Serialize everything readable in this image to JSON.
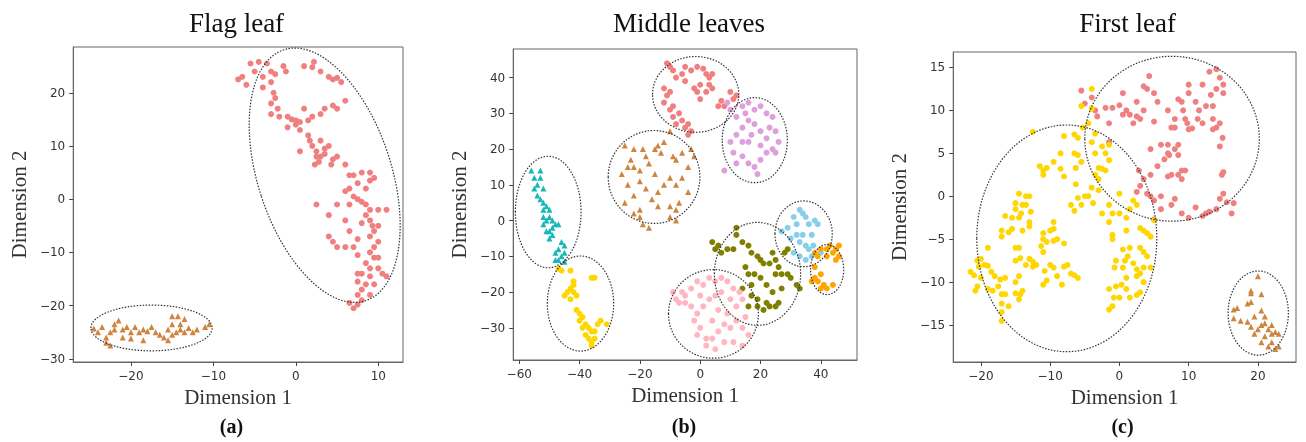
{
  "chart_data": [
    {
      "type": "scatter",
      "title": "Flag leaf",
      "xlabel": "Dimension 1",
      "ylabel": "Dimension 2",
      "annotations": [
        "(a)"
      ],
      "xlim": [
        -27,
        13
      ],
      "ylim": [
        -30.6,
        28.6
      ],
      "xticks": [
        -20,
        -10,
        0,
        10
      ],
      "yticks": [
        -30,
        -20,
        -10,
        0,
        10,
        20
      ],
      "series": [
        {
          "color": "#f08080",
          "marker": "circle",
          "x": [
            -7,
            -6.5,
            -6,
            -5.5,
            -5,
            -4.5,
            -4,
            -4,
            -3.5,
            -3,
            -3,
            -2.7,
            -2.5,
            -3,
            -2.2,
            -3,
            -2,
            -1,
            -0.5,
            0,
            -1.5,
            -1.2,
            -2.5,
            1,
            2,
            2.2,
            3,
            4,
            4.5,
            5,
            5.5,
            6,
            5,
            4.5,
            3.5,
            3,
            2,
            1.5,
            0.5,
            1,
            0.5,
            1.5,
            1.7,
            2,
            2.5,
            2.5,
            3,
            3.5,
            3.5,
            2.8,
            2.3,
            4.3,
            4.5,
            4,
            5,
            6,
            6.5,
            7,
            7.5,
            8,
            9,
            9,
            9.5,
            8.5,
            6,
            6.5,
            7,
            5,
            6.5,
            7.5,
            8,
            8.5,
            9,
            10,
            8.5,
            9,
            9.3,
            9.5,
            9,
            10,
            10,
            9.5,
            9,
            9.5,
            10,
            8.5,
            9,
            10,
            8,
            9,
            10.5,
            11,
            7.5,
            8.5,
            9.5,
            8,
            7.5,
            8,
            9,
            6.5,
            7,
            7.5,
            4,
            4.5,
            5,
            6,
            7,
            7.5,
            7.5,
            7.5,
            2.5,
            4,
            6,
            8,
            6.5,
            11,
            0,
            -1,
            0.5,
            3
          ],
          "values": [
            22.5,
            23,
            21.5,
            25.5,
            24,
            25.8,
            23,
            21,
            25.5,
            24,
            22,
            20,
            19,
            18,
            17,
            16,
            15.5,
            15.5,
            15,
            14.8,
            25,
            24,
            23.5,
            25,
            24.8,
            25.8,
            24,
            23,
            22.5,
            22.8,
            22,
            18.5,
            17,
            17.6,
            17,
            16,
            15.5,
            14.8,
            13,
            17,
            14.5,
            12,
            11,
            10,
            9,
            8,
            8,
            8.5,
            9.5,
            7,
            6.5,
            6.5,
            7.5,
            10,
            8,
            6.5,
            4.5,
            4.5,
            3,
            5,
            3.5,
            5,
            4,
            2,
            1.5,
            2,
            0.5,
            -1,
            -1,
            0,
            -0.5,
            -1,
            -2,
            -2,
            -3,
            -4,
            -5,
            -6,
            -7,
            -5,
            -8,
            -9,
            -10,
            -11,
            -11,
            -12,
            -13,
            -13,
            -14,
            -14.5,
            -14,
            -14.5,
            -15.5,
            -16,
            -16,
            -17,
            -18,
            -19,
            -18,
            -19.5,
            -20.5,
            -19.8,
            -7,
            -8,
            -9,
            -9,
            -9,
            -7.5,
            -10.5,
            -14,
            -1,
            -3,
            -4,
            -4.5,
            -6,
            -2,
            14,
            13.5,
            9,
            11
          ]
        },
        {
          "color": "#cd853f",
          "marker": "triangle",
          "x": [
            -24.5,
            -24,
            -23.5,
            -23,
            -23,
            -22.5,
            -22.5,
            -22,
            -21.5,
            -22,
            -21,
            -21,
            -20.5,
            -20,
            -20,
            -19.5,
            -19,
            -18.5,
            -18.5,
            -18,
            -17.5,
            -17,
            -16.5,
            -16,
            -15.5,
            -15,
            -15,
            -14.5,
            -14.3,
            -14,
            -14,
            -13.5,
            -13,
            -12.5,
            -12,
            -11,
            -10.5,
            -15,
            -15.5,
            -13.5
          ],
          "values": [
            -24.3,
            -25,
            -24,
            -26,
            -27,
            -27.5,
            -25,
            -24.5,
            -22.8,
            -23.5,
            -24.5,
            -26,
            -24,
            -25,
            -26.2,
            -24,
            -25,
            -24.5,
            -26.5,
            -24.8,
            -24,
            -25,
            -25.5,
            -26,
            -24.5,
            -23.5,
            -22,
            -25,
            -22,
            -24.5,
            -23.5,
            -25,
            -24.2,
            -25,
            -24.5,
            -24,
            -23.5,
            -25.5,
            -26.5,
            -22.5
          ]
        }
      ]
    },
    {
      "type": "scatter",
      "title": "Middle leaves",
      "xlabel": "Dimension 1",
      "ylabel": "Dimension 2",
      "annotations": [
        "(b)"
      ],
      "xlim": [
        -62,
        52
      ],
      "ylim": [
        -39,
        48
      ],
      "xticks": [
        -60,
        -40,
        -20,
        0,
        20,
        40
      ],
      "yticks": [
        -30,
        -20,
        -10,
        0,
        10,
        20,
        30,
        40
      ],
      "series": [
        {
          "color": "#f08080",
          "marker": "circle",
          "x": [
            -11,
            -10,
            -9,
            -8,
            -5,
            -3,
            -1,
            1,
            2,
            3,
            3,
            4,
            0,
            -1,
            -2,
            2,
            0,
            -5,
            -10,
            -11,
            -12,
            -10,
            -9,
            -8,
            -6,
            -5,
            -4,
            -3,
            -4,
            -9,
            -7,
            6,
            8,
            10,
            11,
            12,
            7,
            -12,
            4,
            -6
          ],
          "values": [
            44,
            43,
            42,
            40,
            43,
            42,
            43,
            42.5,
            41,
            40,
            38,
            37,
            38,
            36,
            37,
            36,
            34,
            39,
            36,
            35,
            33,
            31,
            29,
            27,
            28,
            26,
            24,
            25,
            27,
            32,
            30,
            32,
            32,
            36,
            34,
            35,
            33.5,
            37,
            41,
            41
          ]
        },
        {
          "color": "#dda0dd",
          "marker": "circle",
          "x": [
            9,
            10,
            12,
            14,
            16,
            18,
            20,
            22,
            24,
            25,
            26,
            25,
            24,
            22,
            20,
            18,
            16,
            14,
            12,
            10,
            11,
            12,
            14,
            16,
            18,
            19,
            20,
            22,
            20,
            16,
            14,
            8,
            17,
            23,
            15
          ],
          "values": [
            33,
            31,
            29,
            32,
            33,
            31,
            32,
            30,
            29,
            25,
            22,
            19,
            20,
            23,
            25,
            27,
            28,
            26,
            24,
            22,
            19,
            16,
            18,
            16,
            15,
            13,
            17,
            19,
            21,
            22,
            22,
            14,
            24,
            26,
            30
          ]
        },
        {
          "color": "#cd853f",
          "marker": "triangle",
          "x": [
            -25,
            -23,
            -24,
            -26,
            -22,
            -20,
            -22,
            -18,
            -17,
            -15,
            -13,
            -14,
            -12,
            -10,
            -9,
            -8,
            -6,
            -3,
            -2,
            -4,
            -6,
            -4,
            -8,
            -10,
            -12,
            -14,
            -16,
            -18,
            -20,
            -22,
            -24,
            -25,
            -22,
            -20,
            -19,
            -17,
            -14,
            -10,
            -8,
            -8,
            -10,
            -7,
            -15,
            -19,
            -20
          ],
          "values": [
            21,
            17,
            15,
            13,
            15,
            14,
            20,
            18,
            16,
            20,
            19,
            21,
            22,
            25,
            18,
            17,
            19,
            20,
            18,
            15,
            12,
            8,
            10,
            12,
            10,
            8,
            6,
            9,
            11,
            7,
            10,
            5,
            2,
            1,
            -1,
            -2,
            4,
            4,
            3,
            0,
            1,
            5,
            13,
            20,
            3
          ]
        },
        {
          "color": "#17b8b8",
          "marker": "triangle",
          "x": [
            -56,
            -55,
            -54,
            -53,
            -52,
            -54,
            -53,
            -52,
            -51,
            -52,
            -50,
            -50,
            -51,
            -52,
            -51,
            -50,
            -49,
            -48,
            -47,
            -49,
            -46,
            -45,
            -45,
            -46,
            -47,
            -48,
            -48,
            -45,
            -47,
            -53,
            -55,
            -50,
            -49,
            -52
          ],
          "values": [
            14,
            12,
            10,
            14,
            9,
            7,
            6,
            5,
            4,
            3,
            3,
            1,
            0,
            -1,
            -3,
            -5,
            -2,
            -1,
            -1,
            -4,
            -6,
            -7,
            -9,
            -10,
            -8,
            -9,
            -11,
            -11.5,
            -11,
            12,
            9,
            -3,
            0,
            1
          ]
        },
        {
          "color": "#ffd700",
          "marker": "circle",
          "x": [
            -47,
            -46,
            -43,
            -42,
            -43,
            -44,
            -45,
            -43,
            -42,
            -41,
            -36,
            -35,
            -41,
            -40,
            -40,
            -39,
            -38,
            -37,
            -36,
            -35,
            -37,
            -36,
            -36,
            -35,
            -34,
            -33,
            -31,
            -38,
            -39,
            -42
          ],
          "values": [
            -13.5,
            -14,
            -14,
            -17,
            -19,
            -20,
            -21,
            -22,
            -20,
            -21,
            -16,
            -16,
            -25,
            -26,
            -28,
            -27,
            -29,
            -30,
            -31,
            -31,
            -33,
            -34,
            -35,
            -33,
            -29,
            -28,
            -29,
            -32,
            -30,
            -18
          ]
        },
        {
          "color": "#808000",
          "marker": "circle",
          "x": [
            4,
            5,
            7,
            9,
            11,
            12,
            12,
            14,
            16,
            17,
            19,
            21,
            23,
            25,
            26,
            25,
            27,
            29,
            30,
            29,
            28,
            24,
            20,
            15,
            16,
            18,
            20,
            17,
            14,
            17,
            16,
            19,
            21,
            23,
            25,
            26,
            22,
            24,
            27,
            22,
            32,
            33,
            6,
            19
          ],
          "values": [
            -6,
            -8,
            -9,
            -8,
            -8,
            -2,
            -4,
            -6,
            -7,
            -9,
            -10,
            -12,
            -12,
            -11,
            -13,
            -15,
            -15,
            -15,
            -16,
            -8,
            -9,
            -9,
            -11,
            -13,
            -15,
            -15,
            -16,
            -18,
            -19,
            -21,
            -24,
            -24,
            -25,
            -24,
            -24,
            -23,
            -18,
            -20,
            -19,
            -23,
            -18,
            -19,
            -7,
            -22
          ]
        },
        {
          "color": "#87ceeb",
          "marker": "circle",
          "x": [
            27,
            29,
            31,
            32,
            33,
            34,
            35,
            36,
            38,
            39,
            34,
            33,
            32,
            30,
            35,
            36,
            37,
            37.5,
            40,
            31,
            37,
            33,
            35
          ],
          "values": [
            -3,
            -2,
            1,
            -1,
            3,
            2,
            1,
            -1,
            0,
            -1,
            -4,
            -6,
            -4,
            -5,
            -7,
            -8,
            -10,
            -7,
            -9,
            -9,
            -4,
            -10,
            -11
          ]
        },
        {
          "color": "#ffa500",
          "marker": "circle",
          "x": [
            38,
            39,
            40,
            42,
            43,
            44,
            45,
            46,
            46,
            45,
            42,
            38,
            37,
            38,
            39,
            40,
            41,
            42,
            40,
            44
          ],
          "values": [
            -9,
            -10,
            -8,
            -8,
            -7,
            -9,
            -8,
            -7,
            -10,
            -11,
            -10,
            -13,
            -17,
            -16,
            -17,
            -19,
            -18,
            -19,
            -15,
            -18
          ]
        },
        {
          "color": "#ffb6c1",
          "marker": "circle",
          "x": [
            -9,
            -8,
            -6,
            -5,
            -3,
            -1,
            1,
            3,
            5,
            7,
            9,
            11,
            13,
            14,
            12,
            10,
            7,
            5,
            3,
            1,
            -1,
            -3,
            -5,
            -7,
            -2,
            0,
            2,
            -1,
            2,
            4,
            6,
            8,
            10,
            12,
            14,
            16,
            14,
            11,
            8,
            5,
            15,
            9,
            6,
            4,
            0
          ],
          "values": [
            -20,
            -22,
            -20,
            -21,
            -19,
            -17,
            -18,
            -16,
            -17,
            -16,
            -17,
            -19,
            -20,
            -22,
            -24,
            -22,
            -20,
            -21,
            -22,
            -24,
            -26,
            -24,
            -23,
            -23,
            -28,
            -30,
            -33,
            -32,
            -35,
            -33,
            -31,
            -29,
            -30,
            -28,
            -30,
            -32,
            -35,
            -34,
            -34,
            -36,
            -27,
            -26,
            -25,
            -28,
            -21
          ]
        }
      ]
    },
    {
      "type": "scatter",
      "title": "First leaf",
      "xlabel": "Dimension 1",
      "ylabel": "Dimension 2",
      "annotations": [
        "(c)"
      ],
      "xlim": [
        -24,
        25.5
      ],
      "ylim": [
        -19.3,
        16.8
      ],
      "xticks": [
        -20,
        -10,
        0,
        10,
        20
      ],
      "yticks": [
        -15,
        -10,
        -5,
        0,
        5,
        10,
        15
      ],
      "series": [
        {
          "color": "#f08080",
          "marker": "circle",
          "x": [
            -5.5,
            -5,
            -4,
            -3.5,
            -3.2,
            -2,
            -1,
            0,
            0.5,
            1,
            1.5,
            2,
            2.5,
            2.5,
            3,
            3.5,
            4,
            4.3,
            5,
            5.5,
            3.5,
            -1.5,
            -1.5,
            0.5,
            5,
            7,
            7.5,
            8,
            8.5,
            9,
            9.5,
            9.2,
            10,
            10,
            10,
            9.8,
            8,
            7,
            6.5,
            7.2,
            6,
            7,
            8,
            9,
            7.5,
            5.5,
            4.5,
            3.5,
            3,
            2.5,
            4,
            4.5,
            5,
            6,
            6,
            5,
            7.5,
            8,
            10,
            9,
            11,
            12,
            12.5,
            13,
            14,
            14.5,
            15,
            15.5,
            16.5,
            16.2,
            14.8,
            15,
            14.5,
            14.9,
            14.5,
            14,
            13.5,
            13.5,
            13.5,
            12.5,
            11,
            11.5,
            12,
            13,
            14,
            14.5,
            15,
            15,
            14,
            13.2,
            11.3,
            12,
            10.5,
            8.5,
            8.5,
            9.5,
            9,
            7,
            8.5,
            2.8,
            4.5
          ],
          "values": [
            12.3,
            10.8,
            11.5,
            10,
            9.3,
            10.3,
            10.3,
            10.6,
            12,
            10,
            9.5,
            8.5,
            11,
            9.3,
            9,
            12.8,
            12.5,
            14,
            12,
            11,
            10,
            8.5,
            6.3,
            9.5,
            8.7,
            10,
            8,
            9,
            11.3,
            11,
            9,
            10,
            12,
            13,
            7.8,
            8.5,
            8,
            5,
            4.3,
            4.8,
            6,
            6,
            5.5,
            3,
            2.5,
            3.5,
            2.5,
            2,
            1.2,
            0.5,
            0.3,
            0,
            -0.5,
            0,
            -1.5,
            -2.7,
            -1,
            -0.3,
            -2.5,
            -2,
            -1.3,
            -2.3,
            -2,
            -1.8,
            -1.5,
            -0.3,
            0.3,
            -0.7,
            -0.8,
            -2,
            2.5,
            2.8,
            5.8,
            6.8,
            8.5,
            8,
            7.8,
            9,
            10.5,
            10.5,
            11,
            10,
            13,
            14.5,
            14.8,
            13.8,
            13,
            12,
            12.5,
            11.8,
            9,
            8.5,
            7.9,
            6,
            4.8,
            3,
            2,
            2.3,
            2.5,
            3,
            5.5
          ]
        },
        {
          "color": "#ffd700",
          "marker": "circle",
          "x": [
            -21.5,
            -21,
            -20.5,
            -20,
            -20.3,
            -19.5,
            -19,
            -19,
            -18.5,
            -18,
            -20,
            -20.5,
            -20.8,
            -19,
            -18.3,
            -17.5,
            -17,
            -16.5,
            -17,
            -17,
            -16,
            -16.5,
            -17.2,
            -17,
            -17,
            -17,
            -16.5,
            -16,
            -15.5,
            -15.5,
            -15,
            -15,
            -14.5,
            -14,
            -14.2,
            -14.5,
            -13.5,
            -13.5,
            -13,
            -12.8,
            -13,
            -13,
            -14,
            -15,
            -15,
            -14.5,
            -14.3,
            -13.5,
            -13,
            -12.5,
            -12,
            -12.5,
            -14.5,
            -15,
            -15,
            -14.3,
            -14.5,
            -14,
            -11,
            -11,
            -11.3,
            -10.5,
            -10,
            -9.5,
            -9.5,
            -9.5,
            -9,
            -8,
            -11,
            -10.8,
            -10,
            -9.5,
            -9,
            -8,
            -7.5,
            -8.3,
            -7,
            -6.5,
            -6,
            -11,
            -10.5,
            -12.5,
            -11.5,
            -11,
            -11,
            -10.5,
            -9.5,
            -8.5,
            -8,
            -8.5,
            -8,
            -6.5,
            -6.5,
            -6,
            -6.3,
            -6,
            -5.5,
            -6.3,
            -5.5,
            -5.3,
            -4.5,
            -4,
            -4,
            -3.5,
            -4,
            -3.5,
            -3,
            -3.5,
            -3,
            -2.5,
            -2,
            -2,
            -1.5,
            -1.5,
            -2.5,
            -3,
            -4,
            -4.5,
            -5,
            -5.5,
            -6.5,
            -6,
            -7,
            -3.8,
            -2.5,
            -1.5,
            -1,
            0,
            0,
            -1.5,
            1,
            1.5,
            2,
            2.5,
            3,
            3.5,
            4,
            4.5,
            5,
            1,
            -1,
            -1,
            0.5,
            1.2,
            0.8,
            -0.5,
            -0.7,
            0.5,
            1.5,
            2,
            3,
            3.5,
            4,
            3.5,
            4.5,
            1,
            2.5,
            2.5,
            3,
            0.3,
            1,
            -0.5,
            -1.5,
            -0.8,
            0,
            -1,
            -1.5,
            1.5,
            2.5,
            3,
            3.5
          ],
          "values": [
            -8.8,
            -9.2,
            -7.5,
            -7.3,
            -8.2,
            -8,
            -8.1,
            -6,
            -8.8,
            -9.3,
            -9.5,
            -10.5,
            -11,
            -10.8,
            -11,
            -10.5,
            -11.4,
            -11.4,
            -12.5,
            -13.5,
            -12.8,
            -9.5,
            -9.7,
            -14.5,
            -4.7,
            -4,
            -2.3,
            -4.2,
            -2.5,
            -3.8,
            -0.8,
            -1.5,
            0.3,
            -1,
            -2,
            -2.5,
            -1,
            0,
            0,
            -1.8,
            -3,
            -3.5,
            -4,
            -6,
            -7.5,
            -6,
            -7.2,
            -8,
            -7.3,
            -8.2,
            -8,
            -7.6,
            -9.3,
            -10,
            -11.3,
            -11.4,
            -12,
            -11,
            -4.3,
            -5,
            -5.8,
            -5.3,
            -4,
            -3,
            -3.8,
            -5.2,
            -5,
            -5.5,
            -6.5,
            -8.7,
            -8,
            -8.3,
            -9.3,
            -8.2,
            -8,
            -10.3,
            -9,
            -9.2,
            -9.5,
            -10.3,
            -9.8,
            7.5,
            3.5,
            3,
            2.5,
            3.3,
            4,
            5,
            7,
            3.2,
            2.3,
            7.2,
            5,
            4.8,
            3.3,
            6.8,
            4,
            1.4,
            10.5,
            8,
            8.5,
            12.5,
            10.2,
            7.3,
            6.3,
            5,
            3.3,
            2.5,
            2,
            3.2,
            3,
            5,
            6,
            4.2,
            5.8,
            0.7,
            1,
            0,
            0,
            -1,
            -1.7,
            -0.2,
            -1,
            -0.8,
            -2,
            -1,
            -2,
            -2,
            0.3,
            -3,
            -2.5,
            -1.5,
            -0.5,
            -1,
            -3.7,
            -4,
            -4.3,
            -4.7,
            -2.8,
            -4,
            -4.5,
            -5,
            -6.2,
            -7,
            -7.5,
            -7.5,
            -8.3,
            -8.3,
            -6,
            -7.8,
            -6,
            -6.5,
            -7,
            -8.3,
            -8.3,
            -9.5,
            -8.5,
            -9.3,
            -9,
            -10.3,
            -10.8,
            -10.5,
            -10.8,
            -11.8,
            -11.8,
            -12.8,
            -13.2,
            -11.8,
            -11.5,
            -11.2,
            -10
          ]
        },
        {
          "color": "#cd853f",
          "marker": "triangle",
          "x": [
            20,
            19,
            19,
            20.5,
            18.5,
            19,
            17,
            16.5,
            16.5,
            17.5,
            18.5,
            19.5,
            20.5,
            21,
            20.5,
            21.5,
            20,
            19.5,
            21,
            22,
            22.5,
            23,
            22,
            20.5,
            21.5,
            22.5,
            23,
            21,
            19,
            22
          ],
          "values": [
            -9.3,
            -11,
            -11.3,
            -11.4,
            -12.5,
            -12.3,
            -13,
            -13.2,
            -14.2,
            -14.5,
            -14.6,
            -14,
            -13.3,
            -14,
            -15,
            -15.5,
            -15.5,
            -16,
            -16.3,
            -16,
            -15.8,
            -16,
            -17,
            -17,
            -17.5,
            -17.8,
            -17.5,
            -14.8,
            -15.2,
            -15
          ]
        }
      ]
    }
  ]
}
